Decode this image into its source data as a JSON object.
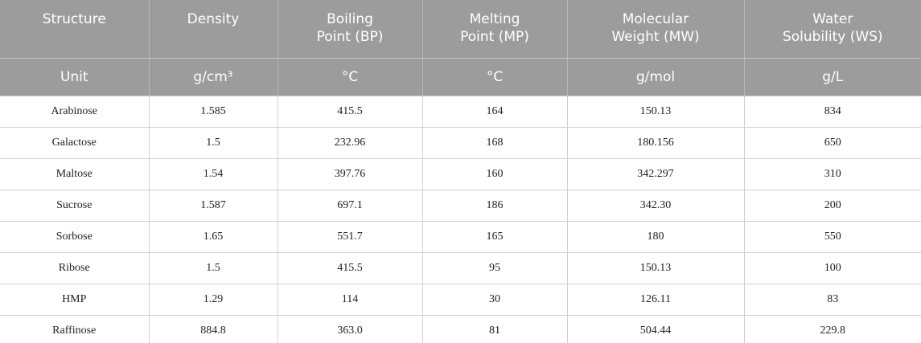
{
  "table": {
    "header": [
      [
        [
          "Structure"
        ],
        [
          "Density"
        ],
        [
          "Boiling",
          "Point (BP)"
        ],
        [
          "Melting",
          "Point (MP)"
        ],
        [
          "Molecular",
          "Weight (MW)"
        ],
        [
          "Water",
          "Solubility (WS)"
        ]
      ],
      [
        [
          "Unit"
        ],
        [
          "g/cm³"
        ],
        [
          "°C"
        ],
        [
          "°C"
        ],
        [
          "g/mol"
        ],
        [
          "g/L"
        ]
      ]
    ],
    "rows": [
      [
        "Arabinose",
        "1.585",
        "415.5",
        "164",
        "150.13",
        "834"
      ],
      [
        "Galactose",
        "1.5",
        "232.96",
        "168",
        "180.156",
        "650"
      ],
      [
        "Maltose",
        "1.54",
        "397.76",
        "160",
        "342.297",
        "310"
      ],
      [
        "Sucrose",
        "1.587",
        "697.1",
        "186",
        "342.30",
        "200"
      ],
      [
        "Sorbose",
        "1.65",
        "551.7",
        "165",
        "180",
        "550"
      ],
      [
        "Ribose",
        "1.5",
        "415.5",
        "95",
        "150.13",
        "100"
      ],
      [
        "HMP",
        "1.29",
        "114",
        "30",
        "126.11",
        "83"
      ],
      [
        "Raffinose",
        "884.8",
        "363.0",
        "81",
        "504.44",
        "229.8"
      ]
    ]
  }
}
